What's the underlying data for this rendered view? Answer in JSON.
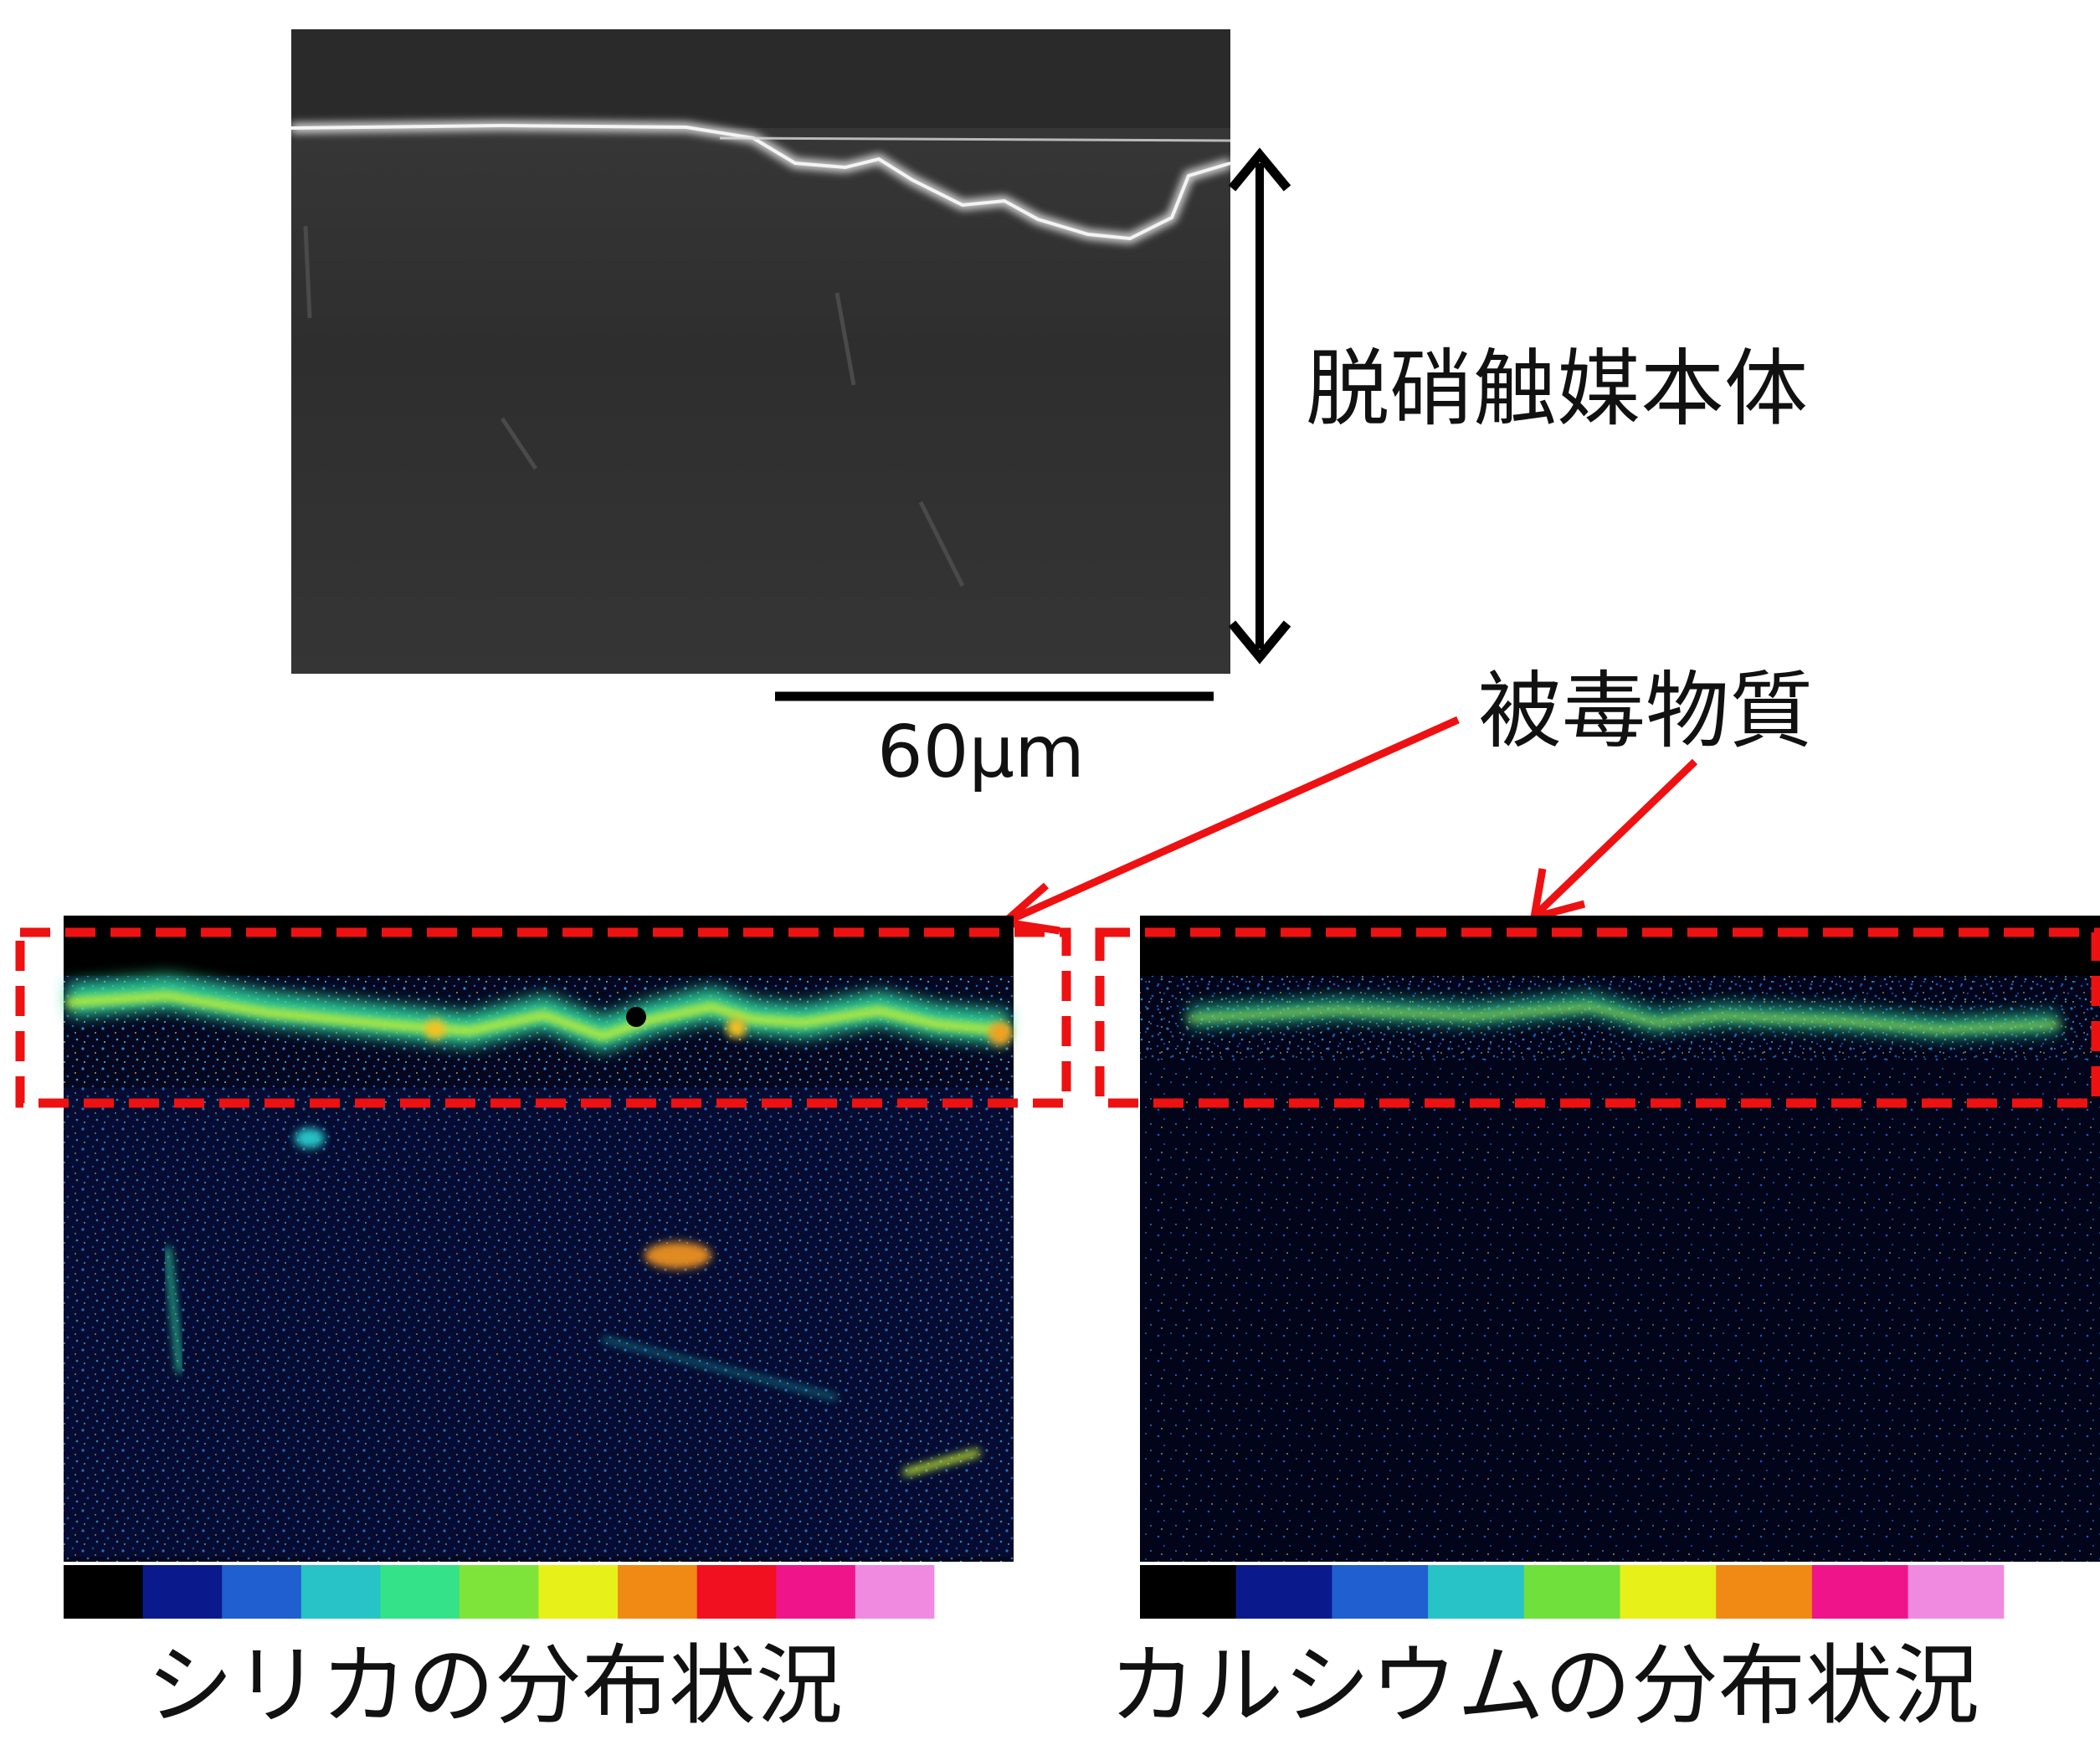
{
  "sem_image": {
    "body_label": "脱硝触媒本体",
    "scale_bar_label": "60μm"
  },
  "callout": {
    "label": "被毒物質",
    "color": "#ee1111"
  },
  "maps": [
    {
      "caption": "シリカの分布状況"
    },
    {
      "caption": "カルシウムの分布状況"
    }
  ],
  "colorbar": {
    "left_colors": [
      "#000000",
      "#0a1a8c",
      "#1f5fd0",
      "#27c3c6",
      "#34e28a",
      "#7ee43a",
      "#e8f01a",
      "#f08a14",
      "#f01020",
      "#f0148a",
      "#f08ae0",
      "#ffffff"
    ],
    "right_colors": [
      "#000000",
      "#0a1a8c",
      "#1f5fd0",
      "#27c3c6",
      "#6fe03c",
      "#e8f01a",
      "#f08a14",
      "#f0148a",
      "#f08ae0",
      "#ffffff"
    ]
  }
}
